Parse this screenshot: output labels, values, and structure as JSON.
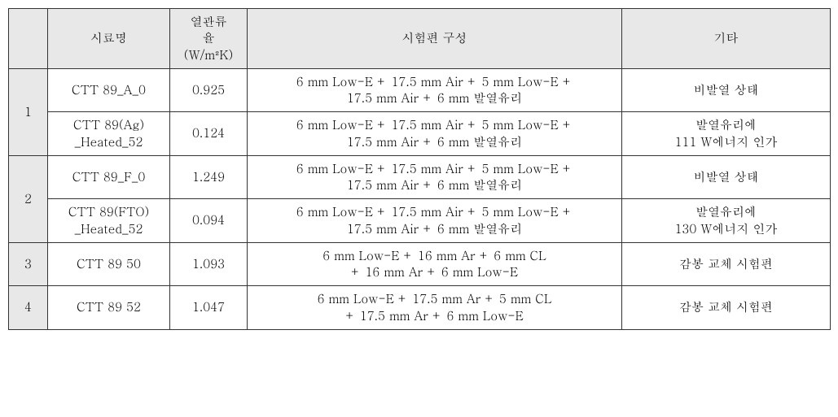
{
  "table": {
    "headers": {
      "idx": "",
      "name": "시료명",
      "value_line1": "열관류",
      "value_line2": "율",
      "value_unit": "(W/m²K)",
      "composition": "시험편 구성",
      "etc": "기타"
    },
    "groups": [
      {
        "idx": "1",
        "rows": [
          {
            "name": "CTT 89_A_0",
            "value": "0.925",
            "comp_l1": "6 mm Low-E + 17.5 mm Air + 5 mm Low-E +",
            "comp_l2": "17.5 mm Air + 6 mm 발열유리",
            "etc_l1": "비발열 상태",
            "etc_l2": ""
          },
          {
            "name_l1": "CTT 89(Ag)",
            "name_l2": "_Heated_52",
            "value": "0.124",
            "comp_l1": "6 mm Low-E + 17.5 mm Air + 5 mm Low-E +",
            "comp_l2": "17.5 mm Air + 6 mm 발열유리",
            "etc_l1": "발열유리에",
            "etc_l2": "111 W에너지 인가"
          }
        ]
      },
      {
        "idx": "2",
        "rows": [
          {
            "name": "CTT 89_F_0",
            "value": "1.249",
            "comp_l1": "6 mm Low-E + 17.5 mm Air + 5 mm Low-E +",
            "comp_l2": "17.5 mm Air + 6 mm 발열유리",
            "etc_l1": "비발열 상태",
            "etc_l2": ""
          },
          {
            "name_l1": "CTT 89(FTO)",
            "name_l2": "_Heated_52",
            "value": "0.094",
            "comp_l1": "6 mm Low-E + 17.5 mm Air + 5 mm Low-E +",
            "comp_l2": "17.5 mm Air + 6 mm 발열유리",
            "etc_l1": "발열유리에",
            "etc_l2": "130 W에너지 인가"
          }
        ]
      },
      {
        "idx": "3",
        "rows": [
          {
            "name": "CTT 89 50",
            "value": "1.093",
            "comp_l1": "6 mm Low-E + 16 mm Ar + 6 mm CL",
            "comp_l2": "+ 16 mm Ar + 6 mm Low-E",
            "etc_l1": "감봉 교체 시험편",
            "etc_l2": ""
          }
        ]
      },
      {
        "idx": "4",
        "rows": [
          {
            "name": "CTT 89 52",
            "value": "1.047",
            "comp_l1": "6 mm Low-E + 17.5 mm Ar + 5 mm CL",
            "comp_l2": "+ 17.5 mm Ar + 6 mm Low-E",
            "etc_l1": "감봉 교체 시험편",
            "etc_l2": ""
          }
        ]
      }
    ]
  }
}
